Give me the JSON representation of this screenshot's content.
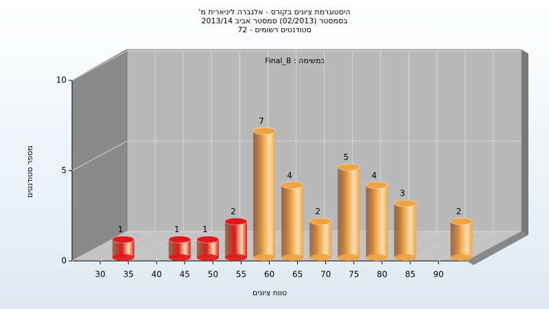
{
  "chart_data": {
    "type": "histogram",
    "title": [
      "היסטוגרמת ציונים בקורס - אלגברה ליניארית מ'",
      "בסמסטר  (02/2013)  סמסטר אביב 2013/14",
      "סטודנטים רשומים - 72"
    ],
    "annotation": "Final_B : במשימה",
    "x_label": "טווח ציונים",
    "y_label": "מספר סטודנטים",
    "bins": [
      30,
      35,
      40,
      45,
      50,
      55,
      60,
      65,
      70,
      75,
      80,
      85,
      90,
      95
    ],
    "values": [
      1,
      0,
      1,
      1,
      2,
      7,
      4,
      2,
      5,
      4,
      3,
      0,
      2
    ],
    "colors": [
      "#e01818",
      "#e01818",
      "#e01818",
      "#e01818",
      "#e01818",
      "#eea443",
      "#eea443",
      "#eea443",
      "#eea443",
      "#eea443",
      "#eea443",
      "#eea443",
      "#eea443"
    ],
    "xlim": [
      25,
      95
    ],
    "xticks": [
      30,
      35,
      40,
      45,
      50,
      55,
      60,
      65,
      70,
      75,
      80,
      85,
      90
    ],
    "ylim": [
      0,
      10
    ],
    "yticks": [
      0,
      5,
      10
    ],
    "grid": true
  }
}
